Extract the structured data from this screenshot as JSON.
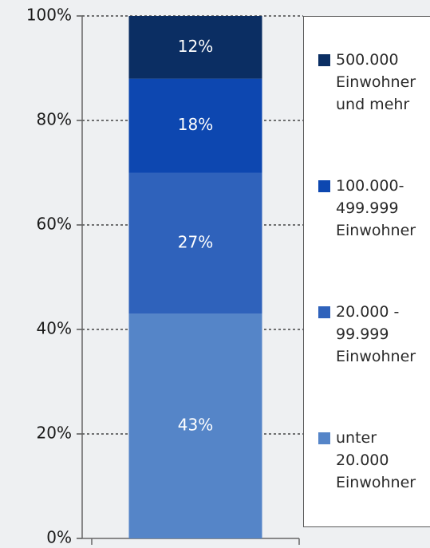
{
  "chart_data": {
    "type": "stacked_bar",
    "categories": [
      null
    ],
    "series": [
      {
        "name": "unter\n20.000\nEinwohner",
        "color": "#5585c8",
        "values": [
          43
        ],
        "value_labels": [
          "43%"
        ]
      },
      {
        "name": "20.000 -\n99.999\nEinwohner",
        "color": "#2f62bb",
        "values": [
          27
        ],
        "value_labels": [
          "27%"
        ]
      },
      {
        "name": "100.000-\n499.999\nEinwohner",
        "color": "#0d47b0",
        "values": [
          18
        ],
        "value_labels": [
          "18%"
        ]
      },
      {
        "name": "500.000\nEinwohner\nund mehr",
        "color": "#0b2e63",
        "values": [
          12
        ],
        "value_labels": [
          "12%"
        ]
      }
    ],
    "ylim": [
      0,
      100
    ],
    "yticks": [
      {
        "value": 0,
        "label": "0%"
      },
      {
        "value": 20,
        "label": "20%"
      },
      {
        "value": 40,
        "label": "40%"
      },
      {
        "value": 60,
        "label": "60%"
      },
      {
        "value": 80,
        "label": "80%"
      },
      {
        "value": 100,
        "label": "100%"
      }
    ],
    "grid": true,
    "legend": "right"
  }
}
